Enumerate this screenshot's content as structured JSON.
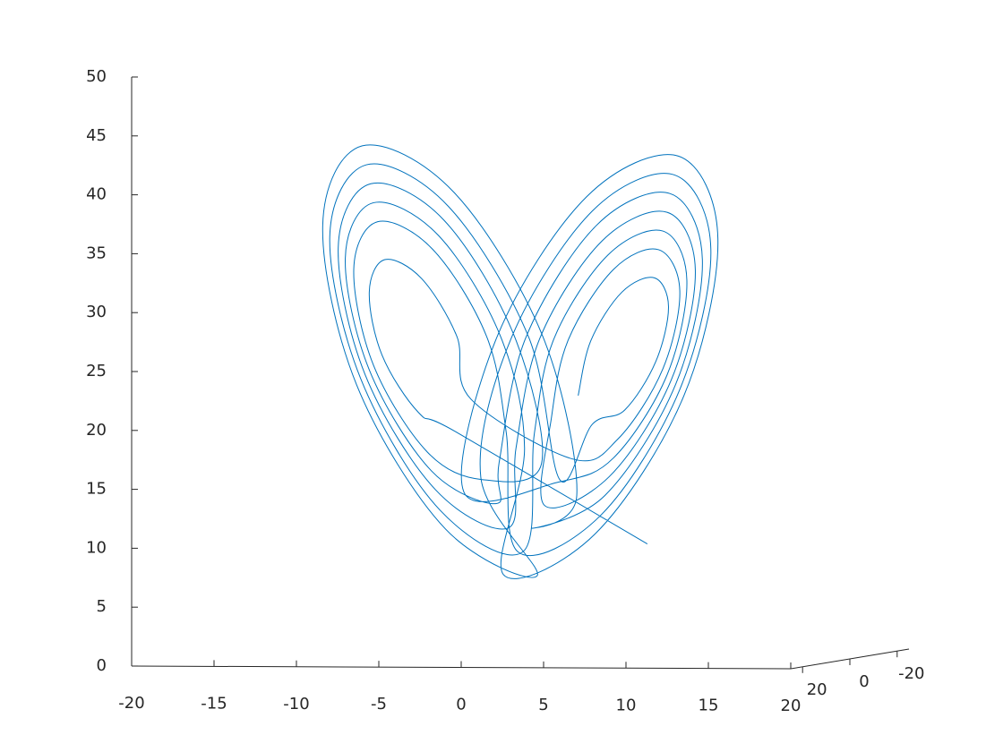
{
  "chart_data": {
    "type": "line3d",
    "series": [
      {
        "color": "#0072bd",
        "x": [
          9.0,
          -4.6,
          -7.2,
          -9.8,
          -10.7,
          -9.6,
          -7.0,
          -4.5,
          -3.5,
          3.7,
          6.9,
          10.1,
          11.3,
          9.8,
          6.6,
          3.4,
          2.2,
          1.7,
          6.3,
          10.7,
          12.4,
          10.4,
          5.8,
          1.4,
          -0.3,
          -0.8,
          -6.0,
          -11.0,
          -12.9,
          -10.6,
          -5.4,
          -0.4,
          1.5,
          -2.7,
          -6.6,
          -10.4,
          -11.8,
          -10.1,
          -6.2,
          -2.4,
          -1.0,
          -0.2,
          5.7,
          11.3,
          13.5,
          10.9,
          5.1,
          -0.6,
          -2.8,
          1.2,
          -5.3,
          -11.6,
          -14.0,
          -11.2,
          -4.7,
          1.6,
          4.0,
          0.8,
          6.0,
          11.0,
          12.9,
          10.6,
          5.4,
          0.4,
          -1.5,
          -1.7,
          -6.3,
          -10.7,
          -12.4,
          -10.4,
          -5.8,
          -1.4,
          0.3,
          -1.2,
          5.3,
          11.6,
          14.0,
          11.2,
          4.7,
          -1.6,
          -4.0,
          2.7,
          6.6,
          10.4,
          11.8,
          10.1,
          6.2,
          2.4,
          1.0,
          0.2,
          -5.7,
          -11.3,
          -13.5,
          -10.9,
          -5.1,
          0.6,
          2.8,
          5.1,
          7.4,
          9.6,
          10.5,
          9.5,
          7.2,
          5.0,
          4.1
        ],
        "y": [
          9.0,
          -4.6,
          -7.2,
          -9.8,
          -10.7,
          -9.6,
          -7.0,
          -4.5,
          -3.5,
          3.7,
          6.9,
          10.1,
          11.3,
          9.8,
          6.6,
          3.4,
          2.2,
          1.7,
          6.3,
          10.7,
          12.4,
          10.4,
          5.8,
          1.4,
          -0.3,
          -0.8,
          -6.0,
          -11.0,
          -12.9,
          -10.6,
          -5.4,
          -0.4,
          1.5,
          -2.7,
          -6.6,
          -10.4,
          -11.8,
          -10.1,
          -6.2,
          -2.4,
          -1.0,
          -0.2,
          5.7,
          11.3,
          13.5,
          10.9,
          5.1,
          -0.6,
          -2.8,
          1.2,
          -5.3,
          -11.6,
          -14.0,
          -11.2,
          -4.7,
          1.6,
          4.0,
          0.8,
          6.0,
          11.0,
          12.9,
          10.6,
          5.4,
          0.4,
          -1.5,
          -1.7,
          -6.3,
          -10.7,
          -12.4,
          -10.4,
          -5.8,
          -1.4,
          0.3,
          -1.2,
          5.3,
          11.6,
          14.0,
          11.2,
          4.7,
          -1.6,
          -4.0,
          2.7,
          6.6,
          10.4,
          11.8,
          10.1,
          6.2,
          2.4,
          1.0,
          0.2,
          -5.7,
          -11.3,
          -13.5,
          -10.9,
          -5.1,
          0.6,
          2.8,
          5.1,
          7.4,
          9.6,
          10.5,
          9.5,
          7.2,
          5.0,
          4.1
        ],
        "z": [
          10.0,
          19.0,
          20.5,
          25.3,
          30.6,
          33.4,
          31.9,
          27.1,
          21.8,
          17.0,
          18.8,
          24.9,
          31.6,
          35.0,
          33.2,
          27.1,
          20.4,
          13.0,
          15.6,
          24.0,
          33.4,
          38.2,
          35.6,
          27.2,
          17.8,
          11.0,
          14.0,
          23.6,
          34.3,
          39.8,
          36.9,
          27.2,
          16.5,
          15.0,
          17.2,
          24.4,
          32.5,
          36.6,
          34.4,
          27.2,
          19.1,
          9.0,
          12.3,
          23.2,
          35.2,
          41.4,
          38.1,
          27.2,
          15.2,
          7.0,
          10.7,
          22.7,
          36.1,
          43.0,
          39.3,
          27.3,
          13.9,
          11.0,
          14.0,
          23.6,
          34.3,
          39.8,
          36.9,
          27.2,
          16.5,
          13.0,
          15.6,
          24.0,
          33.4,
          38.2,
          35.6,
          27.2,
          17.8,
          7.0,
          10.7,
          22.7,
          36.1,
          43.0,
          39.3,
          27.3,
          13.9,
          15.0,
          17.2,
          24.4,
          32.5,
          36.6,
          34.4,
          27.2,
          19.1,
          9.0,
          12.3,
          23.2,
          35.2,
          41.4,
          38.1,
          27.2,
          15.2,
          20.0,
          21.3,
          25.5,
          30.2,
          32.6,
          31.3,
          27.1,
          22.4
        ]
      }
    ],
    "xlim": [
      -20,
      20
    ],
    "ylim": [
      -25,
      25
    ],
    "zlim": [
      0,
      50
    ],
    "xticks": [
      -20,
      -15,
      -10,
      -5,
      0,
      5,
      10,
      15,
      20
    ],
    "yticks": [
      20,
      0,
      -20
    ],
    "zticks": [
      0,
      5,
      10,
      15,
      20,
      25,
      30,
      35,
      40,
      45,
      50
    ],
    "grid": false
  }
}
